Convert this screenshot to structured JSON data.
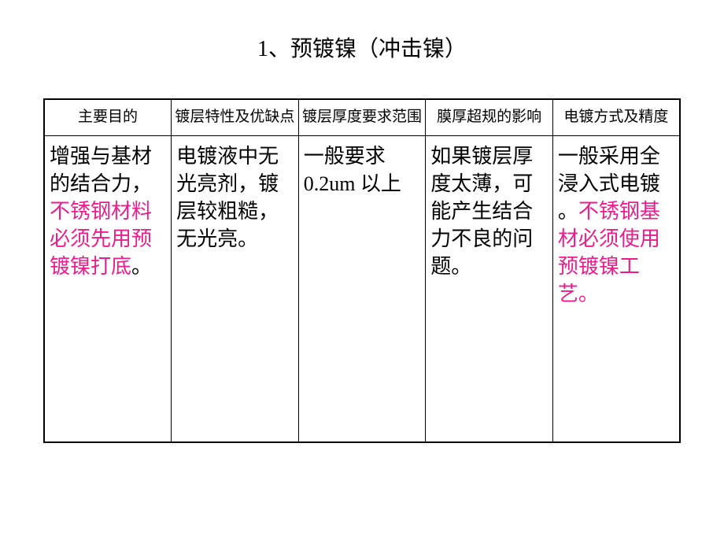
{
  "title": "1、预镀镍（冲击镍）",
  "table": {
    "headers": [
      "主要目的",
      "镀层特性及优缺点",
      "镀层厚度要求范围",
      "膜厚超规的影响",
      "电镀方式及精度"
    ],
    "cells": [
      {
        "parts": [
          {
            "text": "增强与基材的结合力，",
            "highlight": false
          },
          {
            "text": "不锈钢材料必须先用预镀镍打底",
            "highlight": true
          },
          {
            "text": "。",
            "highlight": false
          }
        ]
      },
      {
        "parts": [
          {
            "text": "电镀液中无光亮剂，镀层较粗糙，无光亮。",
            "highlight": false
          }
        ]
      },
      {
        "parts": [
          {
            "text": " 一般要求0.2um 以上",
            "highlight": false
          }
        ]
      },
      {
        "parts": [
          {
            "text": "如果镀层厚度太薄，可能产生结合力不良的问题。",
            "highlight": false
          }
        ]
      },
      {
        "parts": [
          {
            "text": "一般采用全浸入式电镀 。",
            "highlight": false
          },
          {
            "text": "不锈钢基材必须使用预镀镍工艺。",
            "highlight": true
          }
        ]
      }
    ]
  },
  "colors": {
    "text": "#000000",
    "highlight": "#e91e8c",
    "border": "#000000",
    "background": "#ffffff"
  },
  "typography": {
    "title_fontsize": 28,
    "header_fontsize": 19,
    "cell_fontsize": 26,
    "font_family": "SimSun"
  }
}
